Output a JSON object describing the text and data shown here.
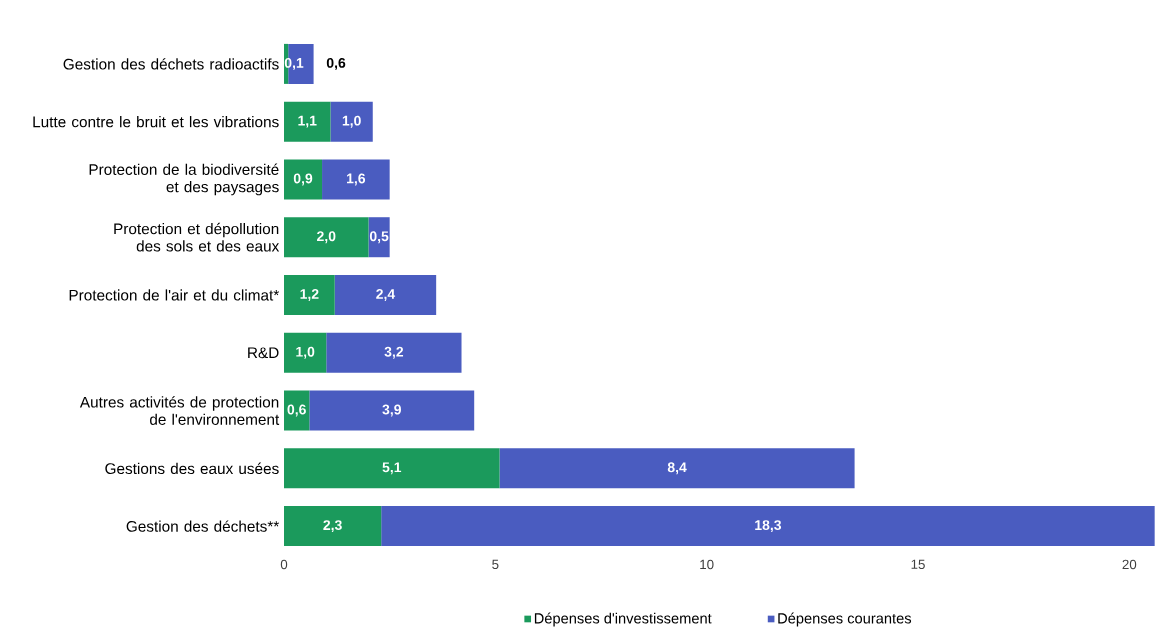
{
  "chart_data": {
    "type": "bar",
    "orientation": "horizontal",
    "stacked": true,
    "categories": [
      "Gestion des déchets radioactifs",
      "Lutte contre le bruit et les vibrations",
      "Protection de la biodiversité et des paysages",
      "Protection et dépollution des sols et des eaux",
      "Protection de l'air et du climat*",
      "R&D",
      "Autres activités de protection de l'environnement",
      "Gestions des eaux usées",
      "Gestion des déchets**"
    ],
    "series": [
      {
        "name": "Dépenses d'investissement",
        "color": "#1b9a5c",
        "values": [
          0.1,
          1.1,
          0.9,
          2.0,
          1.2,
          1.0,
          0.6,
          5.1,
          2.3
        ],
        "value_labels": [
          "0,1",
          "1,1",
          "0,9",
          "2,0",
          "1,2",
          "1,0",
          "0,6",
          "5,1",
          "2,3"
        ]
      },
      {
        "name": "Dépenses courantes",
        "color": "#4a5cc0",
        "values": [
          0.6,
          1.0,
          1.6,
          0.5,
          2.4,
          3.2,
          3.9,
          8.4,
          18.3
        ],
        "value_labels": [
          "0,6",
          "1,0",
          "1,6",
          "0,5",
          "2,4",
          "3,2",
          "3,9",
          "8,4",
          "18,3"
        ]
      }
    ],
    "xlim": [
      0,
      20.6
    ],
    "xticks": [
      0,
      5,
      10,
      15,
      20
    ],
    "legend": "bottom",
    "grid": false
  }
}
